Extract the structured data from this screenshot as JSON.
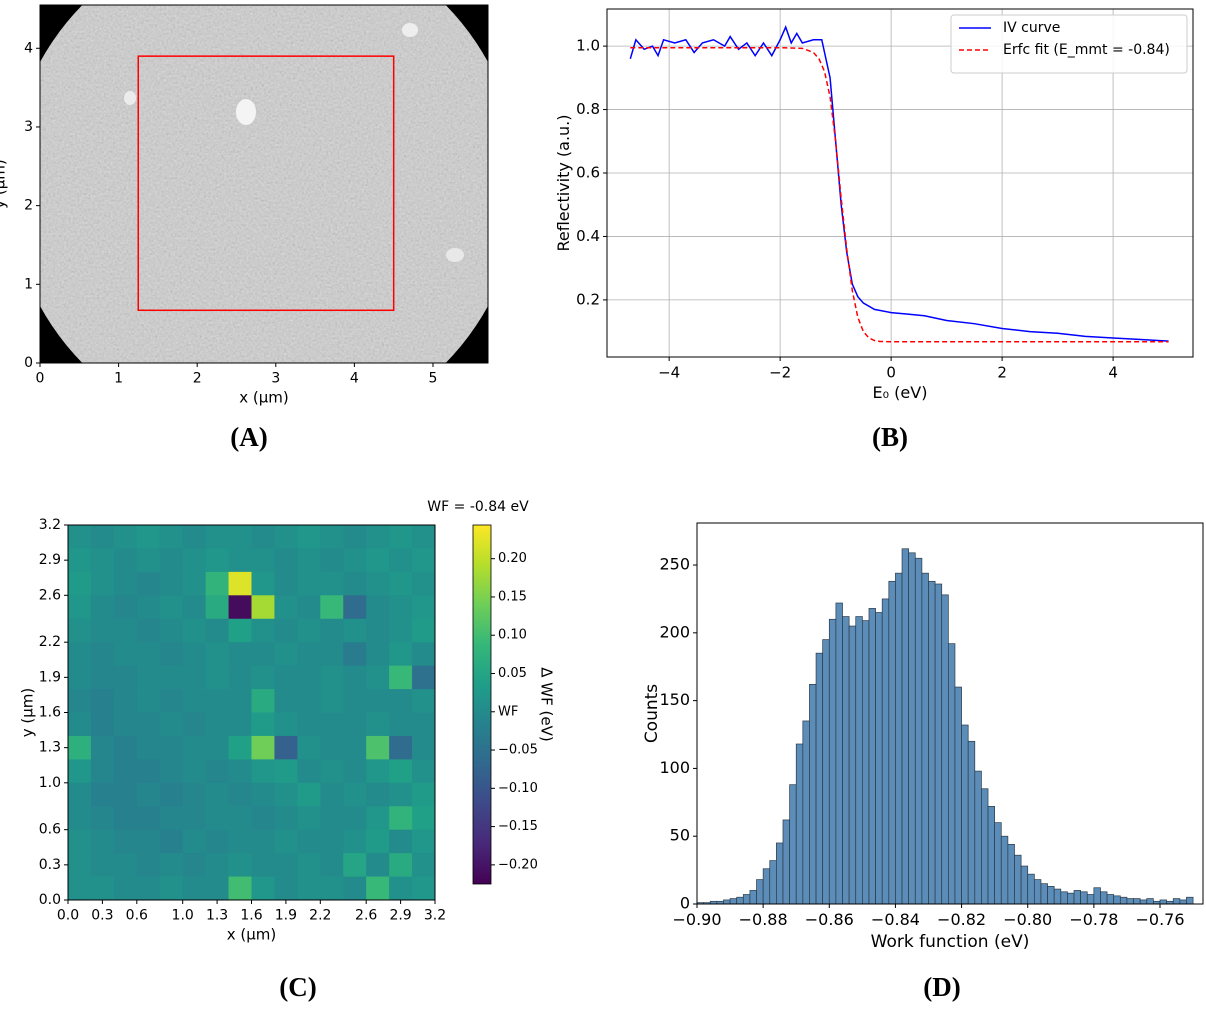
{
  "chart_data": [
    {
      "type": "image",
      "panel_label": "(A)",
      "xlabel": "x (µm)",
      "ylabel": "y (µm)",
      "xlim": [
        0,
        5.7
      ],
      "ylim": [
        0,
        4.55
      ],
      "xticks": [
        0,
        1,
        2,
        3,
        4,
        5
      ],
      "yticks": [
        0,
        1,
        2,
        3,
        4
      ],
      "roi": {
        "x": [
          1.25,
          4.5
        ],
        "y": [
          0.67,
          3.9
        ],
        "color": "#ff0000"
      }
    },
    {
      "type": "line",
      "panel_label": "(B)",
      "xlabel": "E₀ (eV)",
      "ylabel": "Reflectivity (a.u.)",
      "xlim": [
        -5.12,
        5.44
      ],
      "ylim": [
        0.02,
        1.117
      ],
      "xticks": [
        {
          "value": -4,
          "label": "−4"
        },
        {
          "value": -2,
          "label": "−2"
        },
        0,
        2,
        4
      ],
      "yticks": [
        0.2,
        0.4,
        0.6,
        0.8,
        {
          "value": 1,
          "label": "1.0"
        }
      ],
      "grid": true,
      "legend": "upper right",
      "series": [
        {
          "name": "IV curve",
          "color": "#0000ff",
          "style": "solid",
          "x": [
            -4.7,
            -4.6,
            -4.45,
            -4.3,
            -4.2,
            -4.1,
            -3.9,
            -3.7,
            -3.55,
            -3.4,
            -3.2,
            -3.0,
            -2.9,
            -2.75,
            -2.6,
            -2.45,
            -2.3,
            -2.15,
            -2.0,
            -1.9,
            -1.8,
            -1.7,
            -1.6,
            -1.4,
            -1.25,
            -1.1,
            -1.0,
            -0.9,
            -0.8,
            -0.7,
            -0.6,
            -0.5,
            -0.3,
            0.0,
            0.3,
            0.6,
            1.0,
            1.5,
            2.0,
            2.5,
            3.0,
            3.5,
            4.0,
            4.5,
            5.0
          ],
          "values": [
            0.96,
            1.02,
            0.99,
            1.0,
            0.97,
            1.02,
            1.01,
            1.02,
            0.98,
            1.01,
            1.02,
            1.0,
            1.03,
            0.99,
            1.01,
            0.97,
            1.01,
            0.97,
            1.02,
            1.06,
            1.01,
            1.04,
            1.01,
            1.02,
            1.02,
            0.9,
            0.7,
            0.5,
            0.35,
            0.25,
            0.21,
            0.19,
            0.17,
            0.16,
            0.155,
            0.15,
            0.135,
            0.125,
            0.11,
            0.1,
            0.095,
            0.085,
            0.08,
            0.075,
            0.07
          ]
        },
        {
          "name": "Erfc fit (E_mmt = -0.84)",
          "color": "#ff0000",
          "style": "dashed",
          "x": [
            -4.7,
            -4.0,
            -3.0,
            -2.0,
            -1.6,
            -1.4,
            -1.3,
            -1.2,
            -1.1,
            -1.0,
            -0.9,
            -0.8,
            -0.7,
            -0.6,
            -0.5,
            -0.4,
            -0.3,
            -0.2,
            0.0,
            1.0,
            2.0,
            3.0,
            4.0,
            5.0
          ],
          "values": [
            0.995,
            0.995,
            0.995,
            0.995,
            0.993,
            0.98,
            0.96,
            0.92,
            0.84,
            0.7,
            0.52,
            0.36,
            0.23,
            0.145,
            0.1,
            0.08,
            0.072,
            0.069,
            0.068,
            0.068,
            0.068,
            0.068,
            0.068,
            0.068
          ]
        }
      ]
    },
    {
      "type": "heatmap",
      "panel_label": "(C)",
      "title": "WF = -0.84 eV",
      "colorbar_label": "Δ WF (eV)",
      "xlabel": "x (µm)",
      "ylabel": "y (µm)",
      "colormap": "viridis",
      "xlim": [
        0,
        3.2
      ],
      "ylim": [
        0,
        3.2
      ],
      "xticks": [
        {
          "value": 0,
          "label": "0.0"
        },
        0.3,
        0.6,
        {
          "value": 1,
          "label": "1.0"
        },
        1.3,
        1.6,
        1.9,
        2.2,
        2.6,
        2.9,
        3.2
      ],
      "yticks": [
        {
          "value": 0,
          "label": "0.0"
        },
        0.3,
        0.6,
        {
          "value": 1,
          "label": "1.0"
        },
        1.3,
        1.6,
        1.9,
        2.2,
        2.6,
        2.9,
        3.2
      ],
      "clim": [
        -0.225,
        0.244
      ],
      "cticks": [
        {
          "value": 0.2,
          "label": "0.20"
        },
        0.15,
        {
          "value": 0.1,
          "label": "0.10"
        },
        0.05,
        {
          "value": 0,
          "label": "WF"
        },
        {
          "value": -0.05,
          "label": "−0.05"
        },
        {
          "value": -0.1,
          "label": "−0.10"
        },
        {
          "value": -0.15,
          "label": "−0.15"
        },
        {
          "value": -0.2,
          "label": "−0.20"
        }
      ],
      "z": [
        [
          0.01,
          0.0,
          0.01,
          0.02,
          0.01,
          0.0,
          0.01,
          0.01,
          0.0,
          0.01,
          0.02,
          0.01,
          0.0,
          0.01,
          0.02,
          0.01
        ],
        [
          0.02,
          0.01,
          0.0,
          0.01,
          0.0,
          0.01,
          0.02,
          0.01,
          0.01,
          0.0,
          0.01,
          0.0,
          0.01,
          0.02,
          0.01,
          0.02
        ],
        [
          0.03,
          0.01,
          0.0,
          -0.01,
          0.0,
          0.01,
          0.08,
          0.22,
          0.02,
          0.0,
          0.01,
          0.01,
          0.0,
          0.01,
          0.02,
          0.01
        ],
        [
          0.02,
          0.0,
          -0.01,
          0.0,
          0.01,
          0.0,
          0.06,
          -0.21,
          0.18,
          0.01,
          0.0,
          0.09,
          -0.06,
          0.0,
          0.01,
          0.02
        ],
        [
          0.01,
          0.0,
          0.0,
          -0.01,
          0.0,
          0.01,
          0.0,
          0.04,
          0.01,
          0.0,
          0.01,
          0.0,
          0.01,
          0.0,
          0.01,
          0.03
        ],
        [
          0.0,
          -0.01,
          0.0,
          0.0,
          -0.01,
          0.0,
          0.01,
          0.0,
          0.0,
          0.01,
          0.0,
          0.0,
          -0.03,
          0.0,
          0.02,
          0.0
        ],
        [
          0.0,
          -0.01,
          -0.01,
          0.0,
          0.0,
          0.0,
          0.01,
          0.0,
          0.01,
          0.0,
          0.0,
          0.01,
          0.0,
          0.01,
          0.09,
          -0.05
        ],
        [
          -0.01,
          -0.02,
          -0.01,
          0.0,
          -0.01,
          0.0,
          0.0,
          0.0,
          0.06,
          0.0,
          0.0,
          0.01,
          0.0,
          0.0,
          0.0,
          0.01
        ],
        [
          0.0,
          -0.02,
          -0.01,
          -0.01,
          0.0,
          -0.01,
          0.0,
          0.0,
          0.03,
          0.01,
          0.0,
          0.0,
          0.0,
          0.01,
          0.0,
          0.0
        ],
        [
          0.07,
          -0.01,
          -0.02,
          -0.01,
          -0.01,
          0.0,
          0.0,
          0.04,
          0.14,
          -0.08,
          0.01,
          0.0,
          0.0,
          0.11,
          -0.06,
          0.0
        ],
        [
          0.02,
          -0.01,
          -0.02,
          -0.02,
          -0.01,
          0.0,
          -0.01,
          0.0,
          0.02,
          0.03,
          0.0,
          0.01,
          0.0,
          0.02,
          0.04,
          0.01
        ],
        [
          0.0,
          -0.02,
          -0.02,
          -0.01,
          -0.02,
          -0.01,
          0.0,
          -0.01,
          0.0,
          0.01,
          0.03,
          0.0,
          0.01,
          0.0,
          0.01,
          0.03
        ],
        [
          0.0,
          -0.01,
          -0.02,
          -0.02,
          -0.01,
          -0.01,
          0.0,
          0.0,
          -0.01,
          0.0,
          0.01,
          0.0,
          0.0,
          0.02,
          0.08,
          0.04
        ],
        [
          0.01,
          0.0,
          -0.01,
          -0.01,
          -0.02,
          0.0,
          -0.01,
          0.0,
          0.0,
          0.01,
          0.0,
          0.0,
          0.01,
          0.03,
          0.0,
          0.02
        ],
        [
          0.01,
          0.0,
          0.0,
          -0.01,
          0.0,
          -0.01,
          0.0,
          0.01,
          0.0,
          0.0,
          0.01,
          0.0,
          0.05,
          0.0,
          0.06,
          0.01
        ],
        [
          0.01,
          0.01,
          0.0,
          0.0,
          0.01,
          0.0,
          0.0,
          0.1,
          0.02,
          0.0,
          0.01,
          0.01,
          0.0,
          0.09,
          0.01,
          0.02
        ]
      ]
    },
    {
      "type": "histogram",
      "panel_label": "(D)",
      "xlabel": "Work function (eV)",
      "ylabel": "Counts",
      "color": "#5b8db8",
      "edgecolor": "#2b3a48",
      "xlim": [
        -0.9,
        -0.747
      ],
      "ylim": [
        0,
        281
      ],
      "xticks": [
        {
          "value": -0.9,
          "label": "−0.90"
        },
        {
          "value": -0.88,
          "label": "−0.88"
        },
        {
          "value": -0.86,
          "label": "−0.86"
        },
        {
          "value": -0.84,
          "label": "−0.84"
        },
        {
          "value": -0.82,
          "label": "−0.82"
        },
        {
          "value": -0.8,
          "label": "−0.80"
        },
        {
          "value": -0.78,
          "label": "−0.78"
        },
        {
          "value": -0.76,
          "label": "−0.76"
        }
      ],
      "yticks": [
        0,
        50,
        100,
        150,
        200,
        250
      ],
      "bins": [
        -0.9,
        -0.898,
        -0.896,
        -0.894,
        -0.892,
        -0.89,
        -0.888,
        -0.886,
        -0.884,
        -0.882,
        -0.88,
        -0.878,
        -0.876,
        -0.874,
        -0.872,
        -0.87,
        -0.868,
        -0.866,
        -0.864,
        -0.862,
        -0.86,
        -0.858,
        -0.856,
        -0.854,
        -0.852,
        -0.85,
        -0.848,
        -0.846,
        -0.844,
        -0.842,
        -0.84,
        -0.838,
        -0.836,
        -0.834,
        -0.832,
        -0.83,
        -0.828,
        -0.826,
        -0.824,
        -0.822,
        -0.82,
        -0.818,
        -0.816,
        -0.814,
        -0.812,
        -0.81,
        -0.808,
        -0.806,
        -0.804,
        -0.802,
        -0.8,
        -0.798,
        -0.796,
        -0.794,
        -0.792,
        -0.79,
        -0.788,
        -0.786,
        -0.784,
        -0.782,
        -0.78,
        -0.778,
        -0.776,
        -0.774,
        -0.772,
        -0.77,
        -0.768,
        -0.766,
        -0.764,
        -0.762,
        -0.76,
        -0.758,
        -0.756,
        -0.754,
        -0.752,
        -0.75
      ],
      "counts": [
        1,
        1,
        2,
        2,
        3,
        4,
        5,
        7,
        10,
        18,
        26,
        32,
        45,
        62,
        88,
        118,
        135,
        162,
        185,
        195,
        210,
        222,
        212,
        205,
        212,
        209,
        218,
        215,
        225,
        238,
        244,
        262,
        259,
        255,
        244,
        238,
        236,
        228,
        192,
        160,
        132,
        120,
        98,
        85,
        72,
        60,
        50,
        44,
        36,
        28,
        22,
        18,
        15,
        13,
        11,
        9,
        8,
        10,
        9,
        7,
        12,
        9,
        7,
        6,
        5,
        4,
        4,
        3,
        4,
        2,
        3,
        2,
        4,
        3,
        5
      ]
    }
  ]
}
